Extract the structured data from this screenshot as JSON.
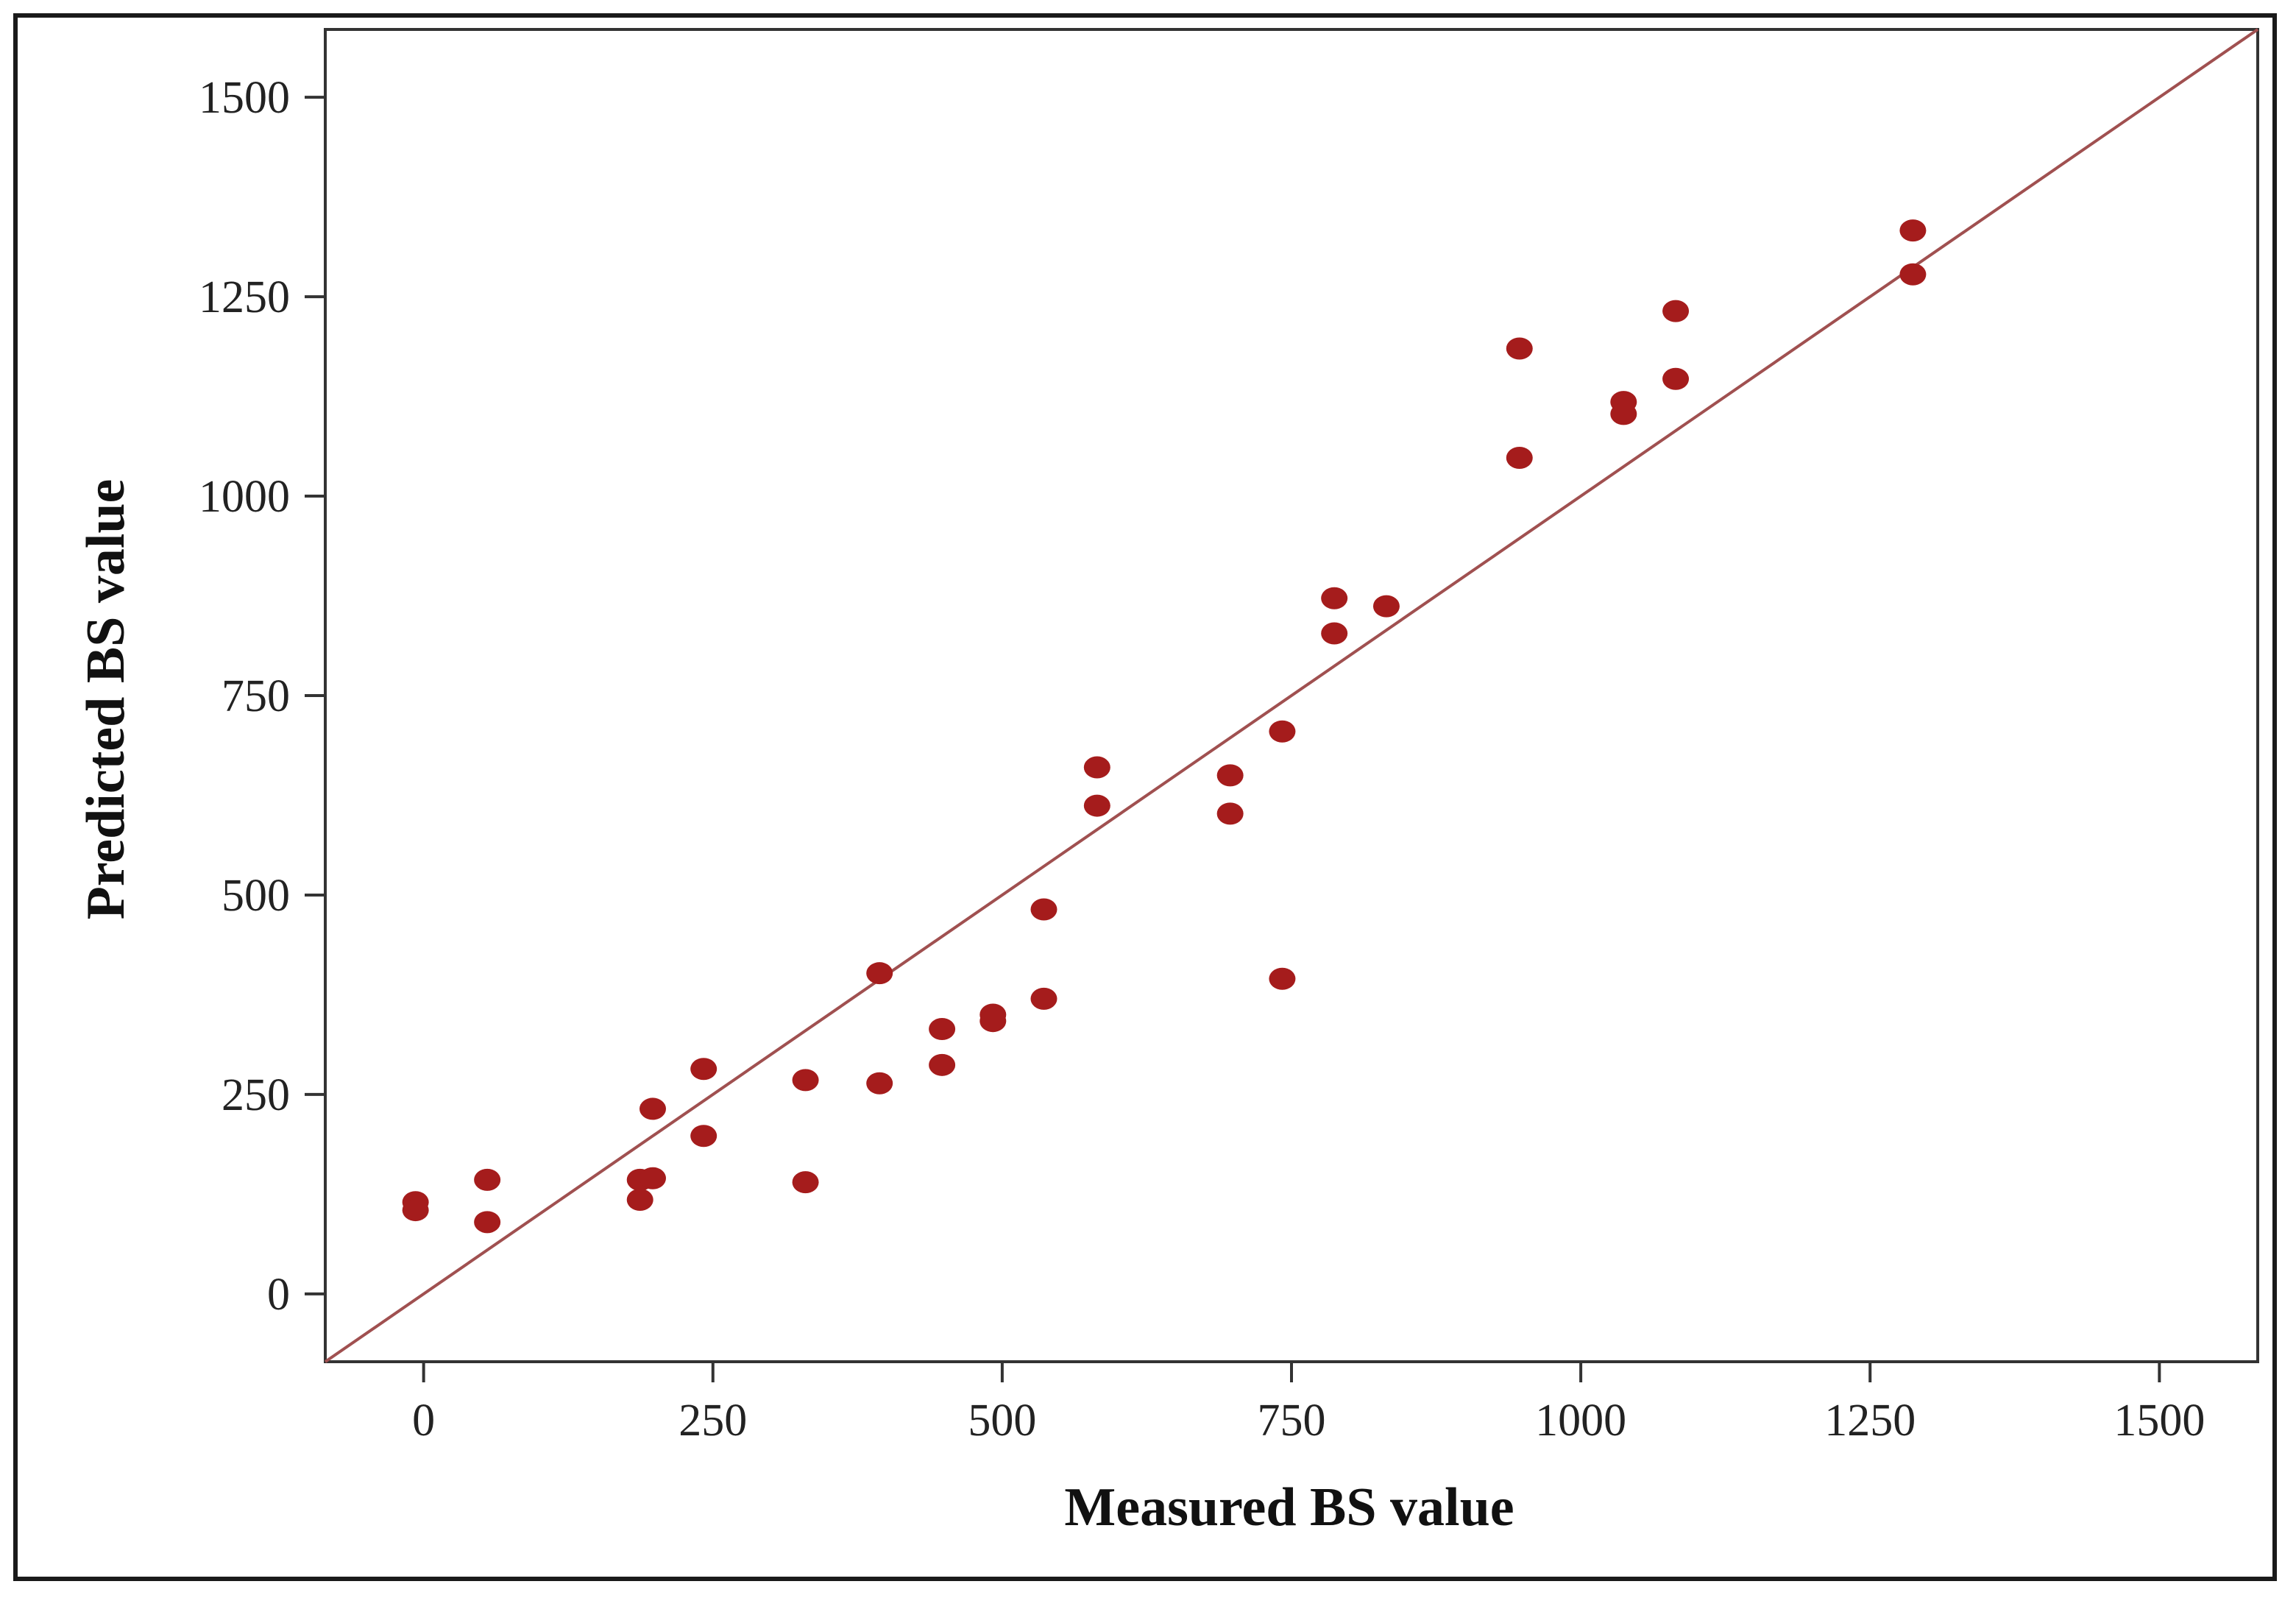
{
  "chart_data": {
    "type": "scatter",
    "title": "",
    "xlabel": "Measured BS value",
    "ylabel": "Predicted BS value",
    "xlim": [
      -85,
      1585
    ],
    "ylim": [
      -85,
      1585
    ],
    "xticks": [
      0,
      250,
      500,
      750,
      1000,
      1250,
      1500
    ],
    "yticks": [
      0,
      250,
      500,
      750,
      1000,
      1250,
      1500
    ],
    "grid": false,
    "reference_line": {
      "type": "identity",
      "from": [
        -85,
        -85
      ],
      "to": [
        1585,
        1585
      ],
      "color": "#a05050"
    },
    "series": [
      {
        "color": "#a51c1c",
        "points": [
          {
            "x": -7,
            "y": 115
          },
          {
            "x": -7,
            "y": 105
          },
          {
            "x": 55,
            "y": 143
          },
          {
            "x": 55,
            "y": 90
          },
          {
            "x": 187,
            "y": 143
          },
          {
            "x": 187,
            "y": 118
          },
          {
            "x": 198,
            "y": 232
          },
          {
            "x": 198,
            "y": 145
          },
          {
            "x": 242,
            "y": 282
          },
          {
            "x": 242,
            "y": 198
          },
          {
            "x": 330,
            "y": 268
          },
          {
            "x": 330,
            "y": 140
          },
          {
            "x": 394,
            "y": 402
          },
          {
            "x": 394,
            "y": 264
          },
          {
            "x": 448,
            "y": 332
          },
          {
            "x": 448,
            "y": 287
          },
          {
            "x": 492,
            "y": 350
          },
          {
            "x": 492,
            "y": 342
          },
          {
            "x": 536,
            "y": 482
          },
          {
            "x": 536,
            "y": 370
          },
          {
            "x": 582,
            "y": 660
          },
          {
            "x": 582,
            "y": 612
          },
          {
            "x": 697,
            "y": 650
          },
          {
            "x": 697,
            "y": 602
          },
          {
            "x": 742,
            "y": 705
          },
          {
            "x": 742,
            "y": 395
          },
          {
            "x": 787,
            "y": 872
          },
          {
            "x": 787,
            "y": 828
          },
          {
            "x": 832,
            "y": 862
          },
          {
            "x": 947,
            "y": 1185
          },
          {
            "x": 947,
            "y": 1048
          },
          {
            "x": 1037,
            "y": 1118
          },
          {
            "x": 1037,
            "y": 1103
          },
          {
            "x": 1082,
            "y": 1232
          },
          {
            "x": 1082,
            "y": 1147
          },
          {
            "x": 1287,
            "y": 1333
          },
          {
            "x": 1287,
            "y": 1278
          }
        ]
      }
    ]
  }
}
